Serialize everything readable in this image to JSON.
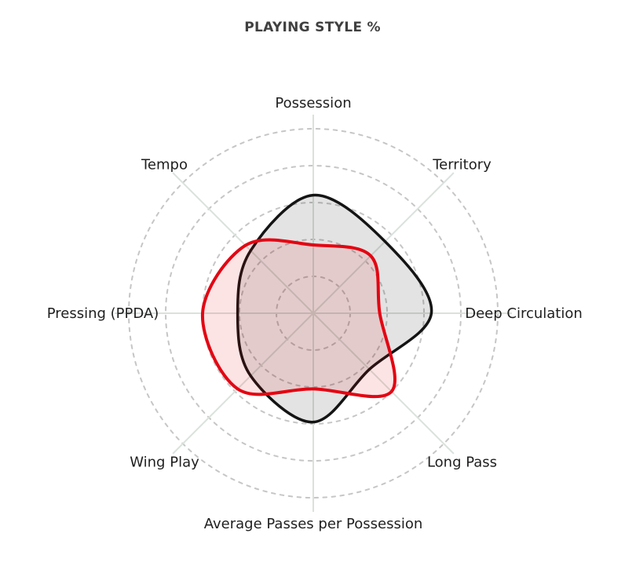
{
  "page": {
    "background_color": "#ffffff"
  },
  "chart_data": {
    "type": "radar",
    "title": "PLAYING STYLE %",
    "title_color": "#404040",
    "label_color": "#1f1f1f",
    "categories": [
      "Possession",
      "Territory",
      "Deep Circulation",
      "Long Pass",
      "Average Passes per Possession",
      "Wing Play",
      "Pressing (PPDA)",
      "Tempo"
    ],
    "angles_deg_clockwise_from_top": [
      0,
      45,
      90,
      135,
      180,
      225,
      270,
      315
    ],
    "series": [
      {
        "name": "black",
        "stroke": "#141414",
        "stroke_width": 3.5,
        "fill": "rgba(0,0,0,0.11)",
        "values": [
          64,
          55,
          64,
          43,
          59,
          48,
          41,
          48
        ]
      },
      {
        "name": "red",
        "stroke": "#e30613",
        "stroke_width": 4,
        "fill": "rgba(227,6,19,0.11)",
        "values": [
          37,
          44,
          36,
          60,
          41,
          58,
          60,
          52
        ]
      }
    ],
    "radial_axis": {
      "min": 0,
      "max": 100,
      "ring_values": [
        20,
        40,
        60,
        80,
        100
      ],
      "unit": "%"
    },
    "grid": {
      "ring_style": "dashed",
      "ring_color": "#c6c6c6",
      "axis_line_color": "#d9e2dc"
    },
    "line_shape": "spline",
    "legend": "none"
  }
}
